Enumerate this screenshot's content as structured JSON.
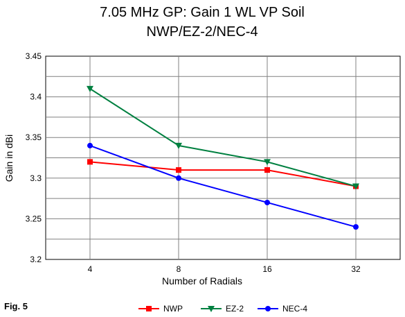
{
  "figure_label": "Fig. 5",
  "chart_data": {
    "type": "line",
    "title_lines": [
      "7.05 MHz GP:  Gain 1 WL VP Soil",
      "NWP/EZ-2/NEC-4"
    ],
    "xlabel": "Number of Radials",
    "ylabel": "Gain in dBi",
    "categories": [
      "4",
      "8",
      "16",
      "32"
    ],
    "ylim": [
      3.2,
      3.45
    ],
    "yticks": [
      "3.2",
      "3.25",
      "3.3",
      "3.35",
      "3.4",
      "3.45"
    ],
    "grid": true,
    "legend_position": "bottom",
    "series": [
      {
        "name": "NWP",
        "color": "#ff0000",
        "marker": "square",
        "values": [
          3.32,
          3.31,
          3.31,
          3.29
        ]
      },
      {
        "name": "EZ-2",
        "color": "#008040",
        "marker": "triangle-down",
        "values": [
          3.41,
          3.34,
          3.32,
          3.29
        ]
      },
      {
        "name": "NEC-4",
        "color": "#0000ff",
        "marker": "circle",
        "values": [
          3.34,
          3.3,
          3.27,
          3.24
        ]
      }
    ]
  }
}
